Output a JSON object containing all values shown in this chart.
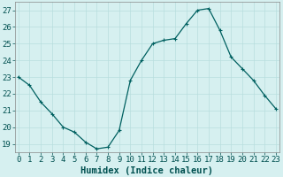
{
  "x": [
    0,
    1,
    2,
    3,
    4,
    5,
    6,
    7,
    8,
    9,
    10,
    11,
    12,
    13,
    14,
    15,
    16,
    17,
    18,
    19,
    20,
    21,
    22,
    23
  ],
  "y": [
    23,
    22.5,
    21.5,
    20.8,
    20.0,
    19.7,
    19.1,
    18.7,
    18.8,
    19.8,
    22.8,
    24.0,
    25.0,
    25.2,
    25.3,
    26.2,
    27.0,
    27.1,
    25.8,
    24.2,
    23.5,
    22.8,
    21.9,
    21.1
  ],
  "line_color": "#006060",
  "marker": "+",
  "marker_size": 3,
  "marker_linewidth": 0.8,
  "bg_color": "#d6f0f0",
  "grid_color": "#b8dede",
  "xlabel": "Humidex (Indice chaleur)",
  "ylim": [
    18.5,
    27.5
  ],
  "yticks": [
    19,
    20,
    21,
    22,
    23,
    24,
    25,
    26,
    27
  ],
  "xticks": [
    0,
    1,
    2,
    3,
    4,
    5,
    6,
    7,
    8,
    9,
    10,
    11,
    12,
    13,
    14,
    15,
    16,
    17,
    18,
    19,
    20,
    21,
    22,
    23
  ],
  "xlabel_fontsize": 7.5,
  "tick_fontsize": 6.5,
  "tick_color": "#005050",
  "axis_color": "#888888",
  "line_width": 0.9,
  "xlim": [
    -0.3,
    23.3
  ]
}
